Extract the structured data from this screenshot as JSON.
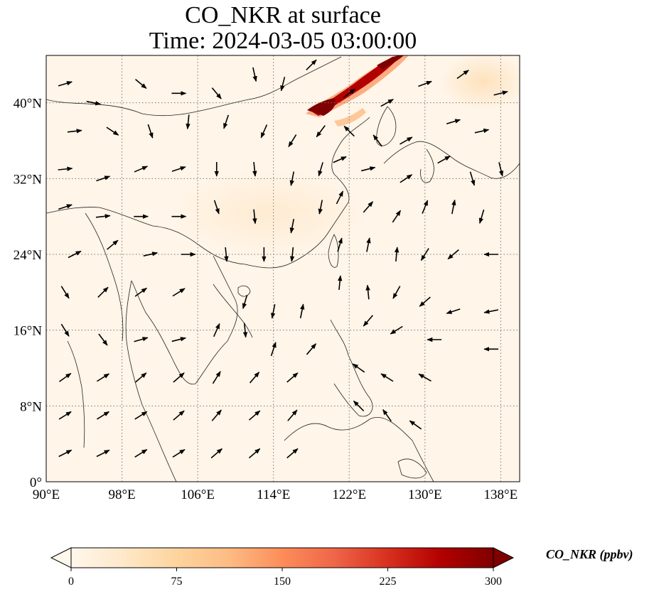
{
  "figure": {
    "title_line1": "CO_NKR at surface",
    "title_line2": "Time: 2024-03-05 03:00:00"
  },
  "map": {
    "projection": "PlateCarree",
    "lon_range": [
      90,
      140
    ],
    "lat_range": [
      0,
      45
    ],
    "gridlines": "dotted gray",
    "lon_ticks": [
      {
        "value": 90,
        "label": "90°E"
      },
      {
        "value": 98,
        "label": "98°E"
      },
      {
        "value": 106,
        "label": "106°E"
      },
      {
        "value": 114,
        "label": "114°E"
      },
      {
        "value": 122,
        "label": "122°E"
      },
      {
        "value": 130,
        "label": "130°E"
      },
      {
        "value": 138,
        "label": "138°E"
      }
    ],
    "lat_ticks": [
      {
        "value": 0,
        "label": "0°"
      },
      {
        "value": 8,
        "label": "8°N"
      },
      {
        "value": 16,
        "label": "16°N"
      },
      {
        "value": 24,
        "label": "24°N"
      },
      {
        "value": 32,
        "label": "32°N"
      },
      {
        "value": 40,
        "label": "40°N"
      }
    ],
    "background_color": "#fff5e8",
    "high_concentration_band": {
      "description_visible": false,
      "color": "#8c0d0d",
      "approx_value_ppbv": 300
    }
  },
  "colorbar": {
    "label": "CO_NKR (ppbv)",
    "min": 0,
    "max": 300,
    "extend": "both",
    "ticks": [
      {
        "value": 0,
        "label": "0"
      },
      {
        "value": 75,
        "label": "75"
      },
      {
        "value": 150,
        "label": "150"
      },
      {
        "value": 225,
        "label": "225"
      },
      {
        "value": 300,
        "label": "300"
      }
    ],
    "colormap": "OrRd",
    "stops": [
      "#fff7ec",
      "#fee8c8",
      "#fdd49e",
      "#fdbb84",
      "#fc8d59",
      "#ef6548",
      "#d7301f",
      "#b30000",
      "#7f0000"
    ]
  },
  "wind_vectors": [
    [
      92,
      42,
      1,
      0.3
    ],
    [
      95,
      40,
      1,
      -0.2
    ],
    [
      100,
      42,
      0.6,
      -0.5
    ],
    [
      104,
      41,
      0.9,
      0
    ],
    [
      108,
      41,
      0.5,
      -0.6
    ],
    [
      112,
      43,
      0.2,
      -0.9
    ],
    [
      115,
      42,
      -0.2,
      -0.8
    ],
    [
      118,
      44,
      0.5,
      0.5
    ],
    [
      93,
      37,
      0.9,
      0.1
    ],
    [
      97,
      37,
      0.6,
      -0.4
    ],
    [
      101,
      37,
      0.3,
      -0.9
    ],
    [
      105,
      38,
      -0.1,
      -1
    ],
    [
      109,
      38,
      -0.3,
      -0.9
    ],
    [
      113,
      37,
      -0.4,
      -0.9
    ],
    [
      116,
      36,
      -0.5,
      -0.8
    ],
    [
      119,
      37,
      -0.6,
      -0.8
    ],
    [
      92,
      33,
      1,
      0.1
    ],
    [
      96,
      32,
      0.9,
      0.3
    ],
    [
      100,
      33,
      0.7,
      0.3
    ],
    [
      104,
      33,
      0.6,
      0.2
    ],
    [
      108,
      33,
      0,
      -1
    ],
    [
      112,
      33,
      0.1,
      -1
    ],
    [
      116,
      32,
      -0.2,
      -1
    ],
    [
      119,
      33,
      -0.3,
      -1
    ],
    [
      92,
      29,
      0.9,
      0.3
    ],
    [
      96,
      28,
      0.9,
      0.1
    ],
    [
      100,
      28,
      0.8,
      0
    ],
    [
      104,
      28,
      1,
      0
    ],
    [
      108,
      29,
      0.3,
      -0.9
    ],
    [
      112,
      28,
      0.1,
      -1
    ],
    [
      116,
      27,
      -0.2,
      -1
    ],
    [
      119,
      29,
      -0.2,
      -1
    ],
    [
      93,
      24,
      0.8,
      0.4
    ],
    [
      97,
      25,
      0.6,
      0.5
    ],
    [
      101,
      24,
      0.9,
      0.2
    ],
    [
      105,
      24,
      1,
      0
    ],
    [
      109,
      24,
      0.1,
      -1
    ],
    [
      113,
      24,
      0,
      -1
    ],
    [
      116,
      24,
      -0.1,
      -1
    ],
    [
      92,
      20,
      0.5,
      -0.8
    ],
    [
      96,
      20,
      0.6,
      0.6
    ],
    [
      100,
      20,
      0.7,
      0.5
    ],
    [
      104,
      20,
      0.8,
      0.5
    ],
    [
      111,
      19,
      -0.3,
      -1
    ],
    [
      114,
      18,
      -0.2,
      -1
    ],
    [
      117,
      18,
      0.2,
      1
    ],
    [
      92,
      16,
      0.5,
      -0.8
    ],
    [
      96,
      15,
      0.6,
      -0.8
    ],
    [
      100,
      15,
      0.7,
      0.2
    ],
    [
      104,
      15,
      0.8,
      0.2
    ],
    [
      108,
      16,
      0.4,
      0.9
    ],
    [
      111,
      16,
      0.1,
      -1
    ],
    [
      114,
      14,
      0.3,
      0.9
    ],
    [
      118,
      14,
      0.6,
      0.7
    ],
    [
      92,
      11,
      0.7,
      0.5
    ],
    [
      96,
      11,
      0.8,
      0.5
    ],
    [
      100,
      11,
      0.7,
      0.6
    ],
    [
      104,
      11,
      0.7,
      0.6
    ],
    [
      108,
      11,
      0.5,
      0.8
    ],
    [
      112,
      11,
      0.6,
      0.7
    ],
    [
      116,
      11,
      0.7,
      0.6
    ],
    [
      92,
      7,
      0.8,
      0.5
    ],
    [
      96,
      7,
      0.8,
      0.5
    ],
    [
      100,
      7,
      0.8,
      0.5
    ],
    [
      104,
      7,
      0.7,
      0.6
    ],
    [
      108,
      7,
      0.6,
      0.7
    ],
    [
      112,
      7,
      0.7,
      0.6
    ],
    [
      116,
      7,
      0.6,
      0.7
    ],
    [
      92,
      3,
      0.8,
      0.4
    ],
    [
      96,
      3,
      0.8,
      0.4
    ],
    [
      100,
      3,
      0.8,
      0.5
    ],
    [
      104,
      3,
      0.8,
      0.5
    ],
    [
      108,
      3,
      0.7,
      0.6
    ],
    [
      112,
      3,
      0.7,
      0.6
    ],
    [
      116,
      3,
      0.7,
      0.6
    ],
    [
      122,
      41,
      0.8,
      0.6
    ],
    [
      126,
      40,
      0.9,
      0.5
    ],
    [
      130,
      42,
      0.8,
      0.3
    ],
    [
      134,
      43,
      0.7,
      0.5
    ],
    [
      138,
      41,
      0.8,
      0.2
    ],
    [
      122,
      37,
      -0.7,
      0.7
    ],
    [
      125,
      36,
      -0.6,
      0.8
    ],
    [
      128,
      36,
      0.7,
      0.4
    ],
    [
      133,
      38,
      1,
      0.3
    ],
    [
      136,
      37,
      0.9,
      0.2
    ],
    [
      121,
      34,
      0.9,
      0.4
    ],
    [
      124,
      33,
      0.8,
      0.2
    ],
    [
      128,
      32,
      0.9,
      0.6
    ],
    [
      132,
      34,
      0.9,
      0.5
    ],
    [
      135,
      32,
      0.3,
      -1
    ],
    [
      138,
      33,
      0.2,
      -0.8
    ],
    [
      121,
      30,
      0.5,
      1
    ],
    [
      124,
      29,
      0.7,
      0.8
    ],
    [
      127,
      28,
      0.6,
      0.9
    ],
    [
      130,
      29,
      0.4,
      1
    ],
    [
      133,
      29,
      0.2,
      1
    ],
    [
      136,
      28,
      -0.3,
      -1
    ],
    [
      121,
      25,
      0.3,
      1
    ],
    [
      124,
      25,
      0.2,
      1
    ],
    [
      127,
      24,
      0.1,
      1
    ],
    [
      130,
      24,
      -0.5,
      -0.8
    ],
    [
      133,
      24,
      -0.7,
      -0.6
    ],
    [
      137,
      24,
      -1,
      0
    ],
    [
      121,
      21,
      0.1,
      1
    ],
    [
      124,
      20,
      -0.1,
      1
    ],
    [
      127,
      20,
      -0.5,
      -0.9
    ],
    [
      130,
      19,
      -0.7,
      -0.6
    ],
    [
      133,
      18,
      -0.9,
      -0.3
    ],
    [
      137,
      18,
      -1,
      -0.2
    ],
    [
      124,
      17,
      -0.6,
      -0.7
    ],
    [
      127,
      16,
      -0.8,
      -0.5
    ],
    [
      131,
      15,
      -1,
      0
    ],
    [
      137,
      14,
      -1,
      0
    ],
    [
      123,
      12,
      -0.7,
      0.5
    ],
    [
      126,
      11,
      -0.8,
      0.5
    ],
    [
      130,
      11,
      -0.7,
      0.4
    ],
    [
      123,
      8,
      -0.6,
      0.6
    ],
    [
      126,
      7,
      -0.5,
      0.7
    ],
    [
      129,
      6,
      -0.7,
      0.5
    ]
  ]
}
